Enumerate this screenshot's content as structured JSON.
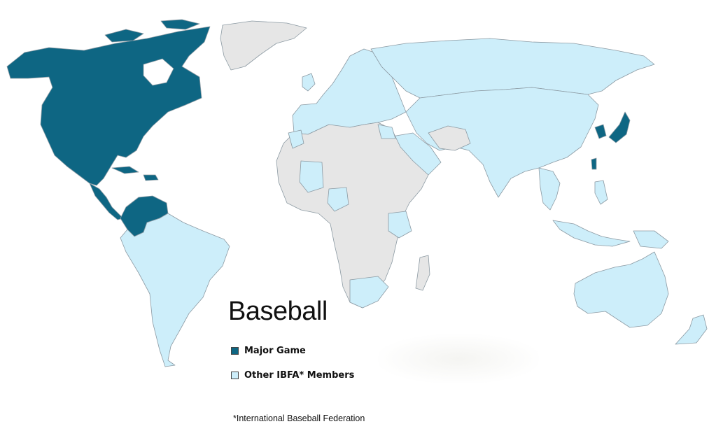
{
  "title": "Baseball",
  "legend": [
    {
      "label": "Major Game",
      "color": "#0e6683"
    },
    {
      "label": "Other IBFA* Members",
      "color": "#cdeefa"
    }
  ],
  "non_member_color": "#e6e6e6",
  "footnote": "*International Baseball Federation",
  "regions": {
    "major_game": [
      "United States",
      "Canada",
      "Mexico",
      "Cuba",
      "Dominican Republic",
      "Panama",
      "Nicaragua",
      "Venezuela",
      "Colombia",
      "Japan",
      "South Korea",
      "Taiwan"
    ],
    "other_ibfa_members": [
      "South America",
      "Europe",
      "Russia",
      "China",
      "India",
      "Australia",
      "Southeast Asia",
      "Middle East"
    ],
    "non_members": [
      "Greenland",
      "Most of Africa",
      "Madagascar",
      "Iran",
      "Afghanistan"
    ]
  }
}
